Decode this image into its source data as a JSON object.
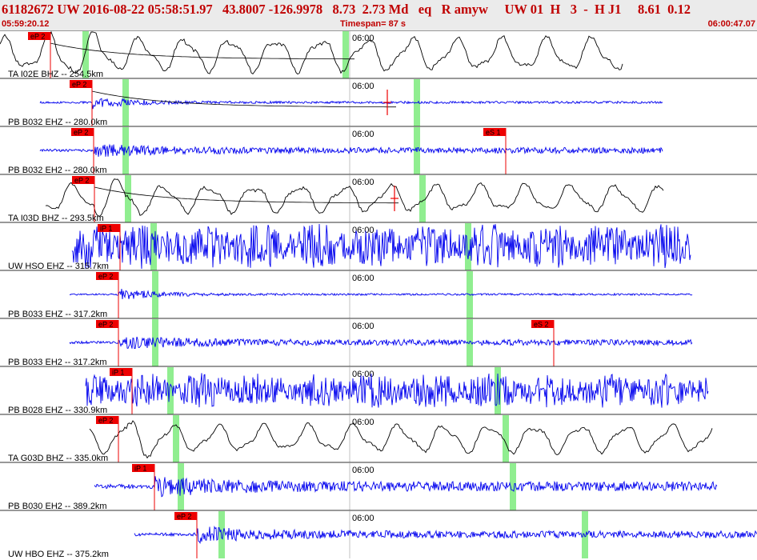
{
  "header": {
    "title": "61182672 UW 2016-08-22 05:58:51.97   43.8007 -126.9978   8.73  2.73 Md   eq   R amyw     UW 01  H   3  -  H J1     8.61  0.12",
    "start_time": "05:59:20.12",
    "timespan": "Timespan=  87 s",
    "end_time": "06:00:47.07"
  },
  "minute_label": "06:00",
  "colors": {
    "blue_trace": "#0000ee",
    "black_trace": "#000000",
    "pick_flag": "#ee0000",
    "green_marker": "#90ee90",
    "grid_line": "#333333",
    "header_text": "#c00000"
  },
  "traces": [
    {
      "label": "TA I02E BHZ -- 254.5km",
      "color": "black",
      "style": "long",
      "pick": "eP 2",
      "pickx": 63,
      "green": [
        107,
        432
      ],
      "start": 0,
      "end": 778,
      "amp": 22,
      "seed": 1,
      "decay": true
    },
    {
      "label": "PB B032 EHZ -- 280.0km",
      "color": "blue",
      "style": "impulsive",
      "pick": "eP 2",
      "pickx": 115,
      "green": [
        157,
        521
      ],
      "start": 50,
      "end": 828,
      "amp": 7,
      "seed": 2,
      "decay": true,
      "redmark": 484
    },
    {
      "label": "PB B032 EH2 -- 280.0km",
      "color": "blue",
      "style": "noisy",
      "pick": "eP 2",
      "pickx": 117,
      "pick2": "eS 1",
      "pick2x": 632,
      "green": [
        157,
        521
      ],
      "start": 50,
      "end": 828,
      "amp": 9,
      "seed": 3
    },
    {
      "label": "TA I03D BHZ -- 293.5km",
      "color": "black",
      "style": "long",
      "pick": "eP 2",
      "pickx": 118,
      "green": [
        160,
        528
      ],
      "start": 57,
      "end": 830,
      "amp": 18,
      "seed": 4,
      "decay": true,
      "redmark": 493
    },
    {
      "label": "UW HSO EHZ -- 315.7km",
      "color": "blue",
      "style": "dense",
      "pick": "iP 1",
      "pickx": 150,
      "green": [
        192,
        585
      ],
      "start": 90,
      "end": 863,
      "amp": 26,
      "seed": 5
    },
    {
      "label": "PB B033 EHZ -- 317.2km",
      "color": "blue",
      "style": "impulsive",
      "pick": "eP 2",
      "pickx": 148,
      "green": [
        194,
        587
      ],
      "start": 87,
      "end": 865,
      "amp": 6,
      "seed": 6
    },
    {
      "label": "PB B033 EH2 -- 317.2km",
      "color": "blue",
      "style": "noisy",
      "pick": "eP 2",
      "pickx": 148,
      "pick2": "eS 2",
      "pick2x": 692,
      "green": [
        194,
        587
      ],
      "start": 87,
      "end": 865,
      "amp": 9,
      "seed": 7
    },
    {
      "label": "PB B028 EHZ -- 330.9km",
      "color": "blue",
      "style": "dense",
      "pick": "iP 1",
      "pickx": 165,
      "green": [
        213,
        622
      ],
      "start": 107,
      "end": 885,
      "amp": 20,
      "seed": 8
    },
    {
      "label": "TA G03D BHZ -- 335.0km",
      "color": "black",
      "style": "long",
      "pick": "eP 2",
      "pickx": 148,
      "green": [
        220,
        632
      ],
      "start": 112,
      "end": 890,
      "amp": 18,
      "seed": 9
    },
    {
      "label": "PB B030 EH2 -- 389.2km",
      "color": "blue",
      "style": "noisy",
      "pick": "iP 1",
      "pickx": 193,
      "green": [
        226,
        641
      ],
      "start": 118,
      "end": 896,
      "amp": 15,
      "seed": 10
    },
    {
      "label": "UW HBO EHZ -- 375.2km",
      "color": "blue",
      "style": "noisy",
      "pick": "eP 2",
      "pickx": 246,
      "green": [
        277,
        731
      ],
      "start": 168,
      "end": 946,
      "amp": 11,
      "seed": 11
    }
  ]
}
